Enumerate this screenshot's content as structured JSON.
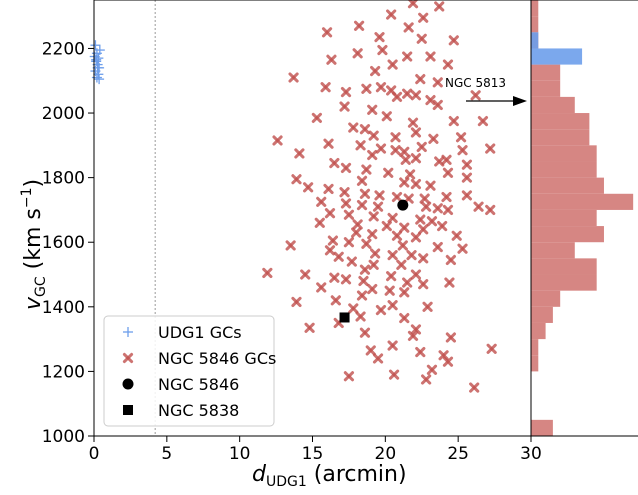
{
  "chart_data": {
    "type": "scatter",
    "xlabel_main": "d",
    "xlabel_sub": "UDG1",
    "xlabel_unit": " (arcmin)",
    "ylabel_main": "v",
    "ylabel_sub": "GC",
    "ylabel_unit": " (km s",
    "ylabel_exp": "−1",
    "ylabel_close": ")",
    "xlim": [
      0,
      30
    ],
    "ylim": [
      1000,
      2350
    ],
    "x_ticks": [
      "0",
      "5",
      "10",
      "15",
      "20",
      "25",
      "30"
    ],
    "y_ticks": [
      "1000",
      "1200",
      "1400",
      "1600",
      "1800",
      "2000",
      "2200"
    ],
    "reference_line_x": 4.2,
    "annotation": {
      "text": "NGC 5813",
      "arrow_from": [
        25,
        2070
      ],
      "arrow_to": [
        29.7,
        2070
      ]
    },
    "legend": {
      "position": "lower-left",
      "entries": [
        "UDG1 GCs",
        "NGC 5846 GCs",
        "NGC 5846",
        "NGC 5838"
      ]
    },
    "colors": {
      "udg1": "#6d9eeb",
      "ngc5846_gcs": "#c0504d",
      "hist_red": "#d47f7c",
      "hist_blue": "#6d9eeb"
    },
    "series": [
      {
        "name": "UDG1 GCs",
        "marker": "plus",
        "points": [
          [
            0.1,
            2210
          ],
          [
            0.2,
            2185
          ],
          [
            0.3,
            2170
          ],
          [
            0.15,
            2160
          ],
          [
            0.25,
            2150
          ],
          [
            0.35,
            2140
          ],
          [
            0.1,
            2130
          ],
          [
            0.3,
            2120
          ],
          [
            0.2,
            2110
          ],
          [
            0.35,
            2105
          ],
          [
            0.05,
            2175
          ],
          [
            0.4,
            2195
          ],
          [
            0.25,
            2140
          ],
          [
            0.15,
            2165
          ]
        ]
      },
      {
        "name": "NGC 5846 GCs",
        "marker": "x",
        "points": [
          [
            21.9,
            2340
          ],
          [
            23.7,
            2330
          ],
          [
            20.4,
            2305
          ],
          [
            22.6,
            2295
          ],
          [
            18.2,
            2270
          ],
          [
            21.6,
            2265
          ],
          [
            16.0,
            2250
          ],
          [
            19.6,
            2235
          ],
          [
            22.5,
            2230
          ],
          [
            24.7,
            2225
          ],
          [
            19.8,
            2195
          ],
          [
            18.1,
            2185
          ],
          [
            21.5,
            2175
          ],
          [
            23.1,
            2175
          ],
          [
            16.3,
            2165
          ],
          [
            20.5,
            2150
          ],
          [
            24.3,
            2150
          ],
          [
            19.3,
            2130
          ],
          [
            13.7,
            2110
          ],
          [
            22.4,
            2105
          ],
          [
            23.6,
            2095
          ],
          [
            19.7,
            2080
          ],
          [
            15.9,
            2080
          ],
          [
            18.7,
            2075
          ],
          [
            20.4,
            2070
          ],
          [
            17.3,
            2065
          ],
          [
            21.5,
            2060
          ],
          [
            22.1,
            2055
          ],
          [
            26.2,
            2055
          ],
          [
            20.8,
            2050
          ],
          [
            23.1,
            2040
          ],
          [
            23.6,
            2025
          ],
          [
            17.2,
            2020
          ],
          [
            19.1,
            2010
          ],
          [
            20.1,
            1990
          ],
          [
            15.3,
            1985
          ],
          [
            21.9,
            1970
          ],
          [
            24.7,
            1975
          ],
          [
            26.7,
            1975
          ],
          [
            17.8,
            1955
          ],
          [
            18.6,
            1950
          ],
          [
            19.2,
            1930
          ],
          [
            20.7,
            1925
          ],
          [
            22.1,
            1940
          ],
          [
            23.3,
            1920
          ],
          [
            25.2,
            1925
          ],
          [
            12.6,
            1915
          ],
          [
            16.1,
            1905
          ],
          [
            18.3,
            1900
          ],
          [
            19.7,
            1890
          ],
          [
            20.7,
            1885
          ],
          [
            21.3,
            1880
          ],
          [
            22.5,
            1895
          ],
          [
            25.3,
            1885
          ],
          [
            27.2,
            1890
          ],
          [
            14.1,
            1875
          ],
          [
            19.1,
            1870
          ],
          [
            21.4,
            1855
          ],
          [
            22.1,
            1860
          ],
          [
            23.7,
            1850
          ],
          [
            24.2,
            1855
          ],
          [
            25.6,
            1840
          ],
          [
            16.5,
            1845
          ],
          [
            17.3,
            1830
          ],
          [
            18.7,
            1825
          ],
          [
            20.2,
            1815
          ],
          [
            21.7,
            1810
          ],
          [
            24.3,
            1815
          ],
          [
            25.6,
            1800
          ],
          [
            13.9,
            1795
          ],
          [
            18.4,
            1790
          ],
          [
            21.3,
            1785
          ],
          [
            22.1,
            1780
          ],
          [
            23.1,
            1775
          ],
          [
            14.7,
            1770
          ],
          [
            16.1,
            1765
          ],
          [
            17.2,
            1755
          ],
          [
            18.6,
            1750
          ],
          [
            19.6,
            1745
          ],
          [
            20.8,
            1740
          ],
          [
            21.6,
            1735
          ],
          [
            22.7,
            1735
          ],
          [
            24.2,
            1740
          ],
          [
            25.6,
            1745
          ],
          [
            15.6,
            1725
          ],
          [
            17.3,
            1720
          ],
          [
            18.4,
            1715
          ],
          [
            19.5,
            1710
          ],
          [
            22.8,
            1710
          ],
          [
            23.6,
            1705
          ],
          [
            24.3,
            1700
          ],
          [
            26.4,
            1710
          ],
          [
            27.2,
            1700
          ],
          [
            16.2,
            1690
          ],
          [
            17.5,
            1685
          ],
          [
            19.2,
            1680
          ],
          [
            20.5,
            1675
          ],
          [
            22.4,
            1670
          ],
          [
            23.2,
            1665
          ],
          [
            15.5,
            1660
          ],
          [
            18.1,
            1655
          ],
          [
            20.1,
            1650
          ],
          [
            21.3,
            1645
          ],
          [
            22.6,
            1640
          ],
          [
            23.9,
            1650
          ],
          [
            18.0,
            1630
          ],
          [
            19.1,
            1625
          ],
          [
            20.8,
            1620
          ],
          [
            22.1,
            1615
          ],
          [
            24.9,
            1620
          ],
          [
            16.4,
            1605
          ],
          [
            17.5,
            1600
          ],
          [
            18.7,
            1595
          ],
          [
            13.5,
            1590
          ],
          [
            21.2,
            1590
          ],
          [
            23.6,
            1585
          ],
          [
            25.3,
            1580
          ],
          [
            16.2,
            1575
          ],
          [
            19.3,
            1565
          ],
          [
            20.5,
            1560
          ],
          [
            21.8,
            1560
          ],
          [
            16.8,
            1555
          ],
          [
            22.6,
            1550
          ],
          [
            24.5,
            1545
          ],
          [
            17.7,
            1540
          ],
          [
            19.2,
            1530
          ],
          [
            21.1,
            1530
          ],
          [
            18.6,
            1515
          ],
          [
            11.9,
            1505
          ],
          [
            14.5,
            1500
          ],
          [
            22.1,
            1500
          ],
          [
            20.4,
            1495
          ],
          [
            16.5,
            1490
          ],
          [
            17.3,
            1485
          ],
          [
            18.5,
            1480
          ],
          [
            21.5,
            1475
          ],
          [
            22.6,
            1470
          ],
          [
            24.4,
            1475
          ],
          [
            15.6,
            1460
          ],
          [
            19.1,
            1455
          ],
          [
            20.3,
            1450
          ],
          [
            21.3,
            1445
          ],
          [
            18.4,
            1435
          ],
          [
            16.6,
            1420
          ],
          [
            13.9,
            1415
          ],
          [
            20.5,
            1405
          ],
          [
            22.9,
            1400
          ],
          [
            17.8,
            1395
          ],
          [
            19.7,
            1390
          ],
          [
            18.3,
            1370
          ],
          [
            21.3,
            1365
          ],
          [
            16.8,
            1350
          ],
          [
            14.8,
            1335
          ],
          [
            22.1,
            1330
          ],
          [
            18.6,
            1320
          ],
          [
            21.9,
            1310
          ],
          [
            24.5,
            1305
          ],
          [
            20.5,
            1280
          ],
          [
            27.3,
            1270
          ],
          [
            19.0,
            1265
          ],
          [
            22.4,
            1260
          ],
          [
            24.0,
            1250
          ],
          [
            19.5,
            1240
          ],
          [
            24.3,
            1230
          ],
          [
            23.2,
            1205
          ],
          [
            20.6,
            1190
          ],
          [
            17.5,
            1185
          ],
          [
            22.8,
            1175
          ],
          [
            26.1,
            1150
          ]
        ]
      },
      {
        "name": "NGC 5846",
        "marker": "circle",
        "points": [
          [
            21.2,
            1715
          ]
        ]
      },
      {
        "name": "NGC 5838",
        "marker": "square",
        "points": [
          [
            17.2,
            1367
          ]
        ]
      }
    ],
    "histogram": {
      "bin_edges": [
        1000,
        1050,
        1100,
        1150,
        1200,
        1250,
        1300,
        1350,
        1400,
        1450,
        1500,
        1550,
        1600,
        1650,
        1700,
        1750,
        1800,
        1850,
        1900,
        1950,
        2000,
        2050,
        2100,
        2150,
        2200,
        2250,
        2300,
        2350
      ],
      "red_counts": [
        3,
        0,
        0,
        0,
        1,
        1,
        2,
        3,
        4,
        9,
        9,
        6,
        10,
        9,
        14,
        10,
        9,
        9,
        8,
        8,
        6,
        4,
        4,
        0,
        1,
        1,
        1
      ],
      "blue_counts": [
        0,
        0,
        0,
        0,
        0,
        0,
        0,
        0,
        0,
        0,
        0,
        0,
        0,
        0,
        0,
        0,
        0,
        0,
        0,
        0,
        0,
        0,
        0,
        7,
        1,
        0,
        0
      ]
    }
  }
}
